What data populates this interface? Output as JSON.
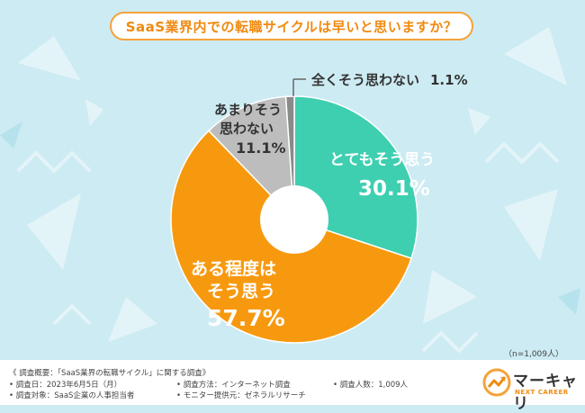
{
  "title": "SaaS業界内での転職サイクルは早いと思いますか？",
  "chart_data": {
    "type": "pie",
    "style": "donut",
    "title": "SaaS業界内での転職サイクルは早いと思いますか？",
    "sample_size": "（n=1,009人）",
    "slices": [
      {
        "label": "とてもそう思う",
        "value": 30.1,
        "display": "30.1%",
        "color": "#3ecfb0"
      },
      {
        "label": "ある程度はそう思う",
        "value": 57.7,
        "display": "57.7%",
        "color": "#f7990f"
      },
      {
        "label": "あまりそう思わない",
        "value": 11.1,
        "display": "11.1%",
        "color": "#bdbdbd"
      },
      {
        "label": "全くそう思わない",
        "value": 1.1,
        "display": "1.1%",
        "color": "#8a8a8a"
      }
    ],
    "label_lines": {
      "s0": [
        "とてもそう思う"
      ],
      "s1": [
        "ある程度は",
        "そう思う"
      ],
      "s2": [
        "あまりそう",
        "思わない"
      ],
      "s3": [
        "全くそう思わない"
      ]
    }
  },
  "footer": {
    "overview": "《 調査概要：「SaaS業界の転職サイクル」に関する調査》",
    "date": "• 調査日：2023年6月5日（月）",
    "target": "• 調査対象：SaaS企業の人事担当者",
    "method": "• 調査方法：インターネット調査",
    "provider": "• モニター提供元：ゼネラルリサーチ",
    "count": "• 調査人数：1,009人"
  },
  "logo": {
    "name": "マーキャリ",
    "sub": "NEXT CAREER",
    "icon": "chart-arrow-icon"
  }
}
